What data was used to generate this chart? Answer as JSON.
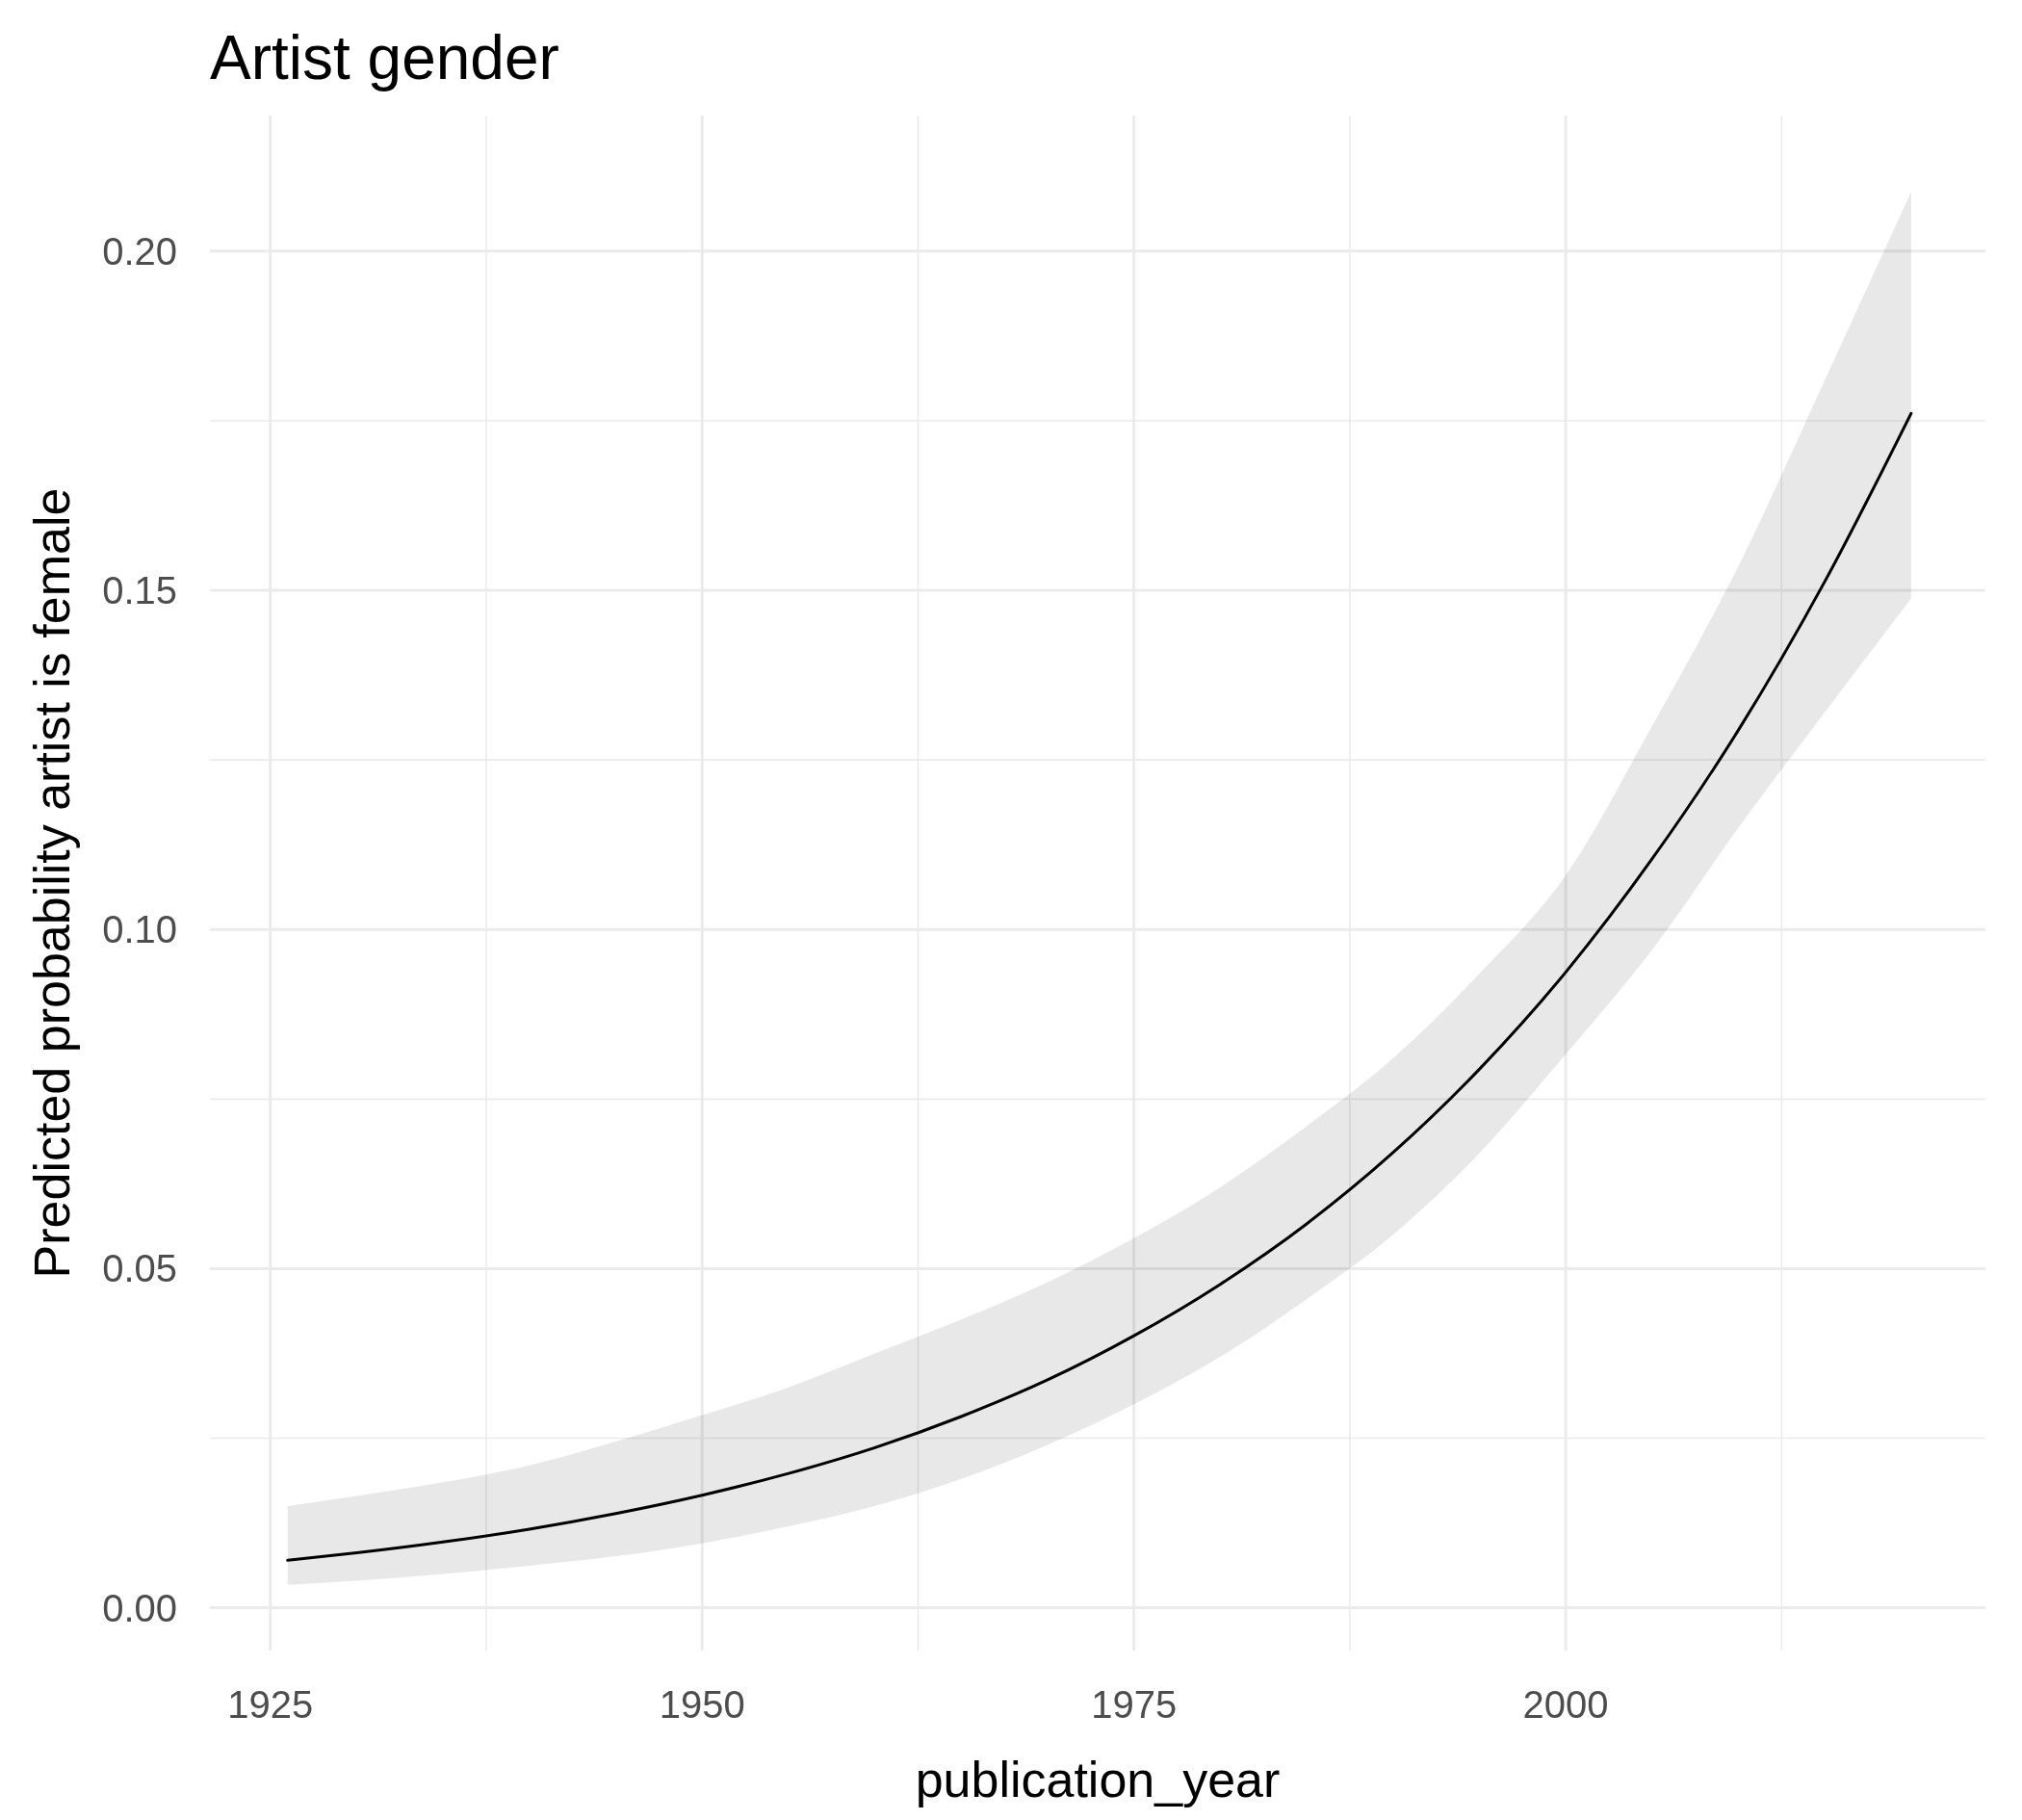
{
  "chart_data": {
    "type": "line",
    "title": "Artist gender",
    "xlabel": "publication_year",
    "ylabel": "Predicted probability artist is female",
    "xlim": [
      1921.5,
      2024.3
    ],
    "ylim": [
      -0.0063,
      0.22
    ],
    "xticks": [
      1925,
      {
        "value": 1937.5,
        "label": null
      },
      1950,
      {
        "value": 1962.5,
        "label": null
      },
      1975,
      {
        "value": 1987.5,
        "label": null
      },
      2000,
      {
        "value": 2012.5,
        "label": null
      }
    ],
    "yticks": [
      "0.00",
      {
        "value": 0.025,
        "label": null
      },
      {
        "value": 0.05,
        "label": "0.05"
      },
      {
        "value": 0.075,
        "label": null
      },
      {
        "value": 0.1,
        "label": "0.10"
      },
      {
        "value": 0.125,
        "label": null
      },
      {
        "value": 0.15,
        "label": "0.15"
      },
      {
        "value": 0.175,
        "label": null
      },
      {
        "value": 0.2,
        "label": "0.20"
      }
    ],
    "grid": true,
    "marker": "none",
    "line_style": "solid",
    "series": [
      {
        "color": "#000000",
        "x": [
          1926,
          1930,
          1935,
          1940,
          1945,
          1950,
          1955,
          1960,
          1965,
          1970,
          1975,
          1980,
          1985,
          1990,
          1995,
          2000,
          2005,
          2010,
          2015,
          2020
        ],
        "values": [
          0.007,
          0.0081,
          0.0097,
          0.0116,
          0.0139,
          0.0166,
          0.0198,
          0.0236,
          0.0282,
          0.0336,
          0.0401,
          0.0477,
          0.0566,
          0.0671,
          0.0794,
          0.0937,
          0.1104,
          0.1294,
          0.1513,
          0.1761
        ],
        "lower": [
          0.0034,
          0.004,
          0.005,
          0.0062,
          0.0076,
          0.0095,
          0.012,
          0.015,
          0.019,
          0.024,
          0.03,
          0.037,
          0.0455,
          0.055,
          0.067,
          0.0816,
          0.097,
          0.115,
          0.132,
          0.1488
        ],
        "upper": [
          0.015,
          0.0165,
          0.0185,
          0.021,
          0.0245,
          0.0284,
          0.0325,
          0.0375,
          0.0425,
          0.048,
          0.0545,
          0.062,
          0.071,
          0.081,
          0.0935,
          0.108,
          0.13,
          0.1536,
          0.181,
          0.2088
        ]
      }
    ]
  }
}
